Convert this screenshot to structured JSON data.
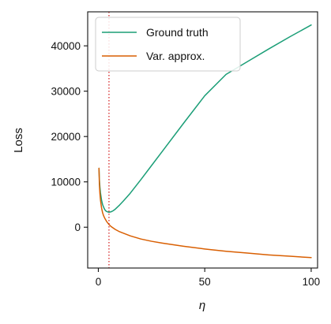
{
  "chart_data": {
    "type": "line",
    "xlabel": "η",
    "ylabel": "Loss",
    "xlim": [
      -5,
      103
    ],
    "ylim": [
      -9000,
      47500
    ],
    "x_ticks": [
      0,
      50,
      100
    ],
    "x_tick_labels": [
      "0",
      "50",
      "100"
    ],
    "y_ticks": [
      0,
      10000,
      20000,
      30000,
      40000
    ],
    "y_tick_labels": [
      "0",
      "10000",
      "20000",
      "30000",
      "40000"
    ],
    "grid": false,
    "legend_position": "top-left",
    "vline": {
      "x": 5,
      "color": "#d62728",
      "style": "dotted"
    },
    "series": [
      {
        "name": "Ground truth",
        "color": "#1b9e77",
        "x": [
          0.3,
          0.5,
          0.75,
          1,
          1.5,
          2,
          2.5,
          3,
          3.5,
          4,
          5,
          6,
          7,
          8,
          10,
          12,
          15,
          20,
          25,
          30,
          40,
          50,
          60,
          70,
          80,
          90,
          100
        ],
        "y": [
          13000,
          10500,
          8800,
          7600,
          6000,
          5000,
          4400,
          3900,
          3600,
          3450,
          3300,
          3400,
          3650,
          4000,
          4900,
          5900,
          7500,
          10500,
          13600,
          16700,
          22900,
          29000,
          33700,
          36500,
          39300,
          42000,
          44600
        ]
      },
      {
        "name": "Var. approx.",
        "color": "#d95f02",
        "x": [
          0.3,
          0.5,
          0.75,
          1,
          1.5,
          2,
          2.5,
          3,
          4,
          5,
          6,
          8,
          10,
          15,
          20,
          25,
          30,
          40,
          50,
          60,
          70,
          80,
          90,
          100
        ],
        "y": [
          13000,
          9500,
          7400,
          6000,
          4300,
          3200,
          2500,
          2000,
          1200,
          600,
          150,
          -500,
          -1000,
          -1900,
          -2600,
          -3100,
          -3500,
          -4200,
          -4800,
          -5300,
          -5700,
          -6100,
          -6400,
          -6700
        ]
      }
    ]
  }
}
